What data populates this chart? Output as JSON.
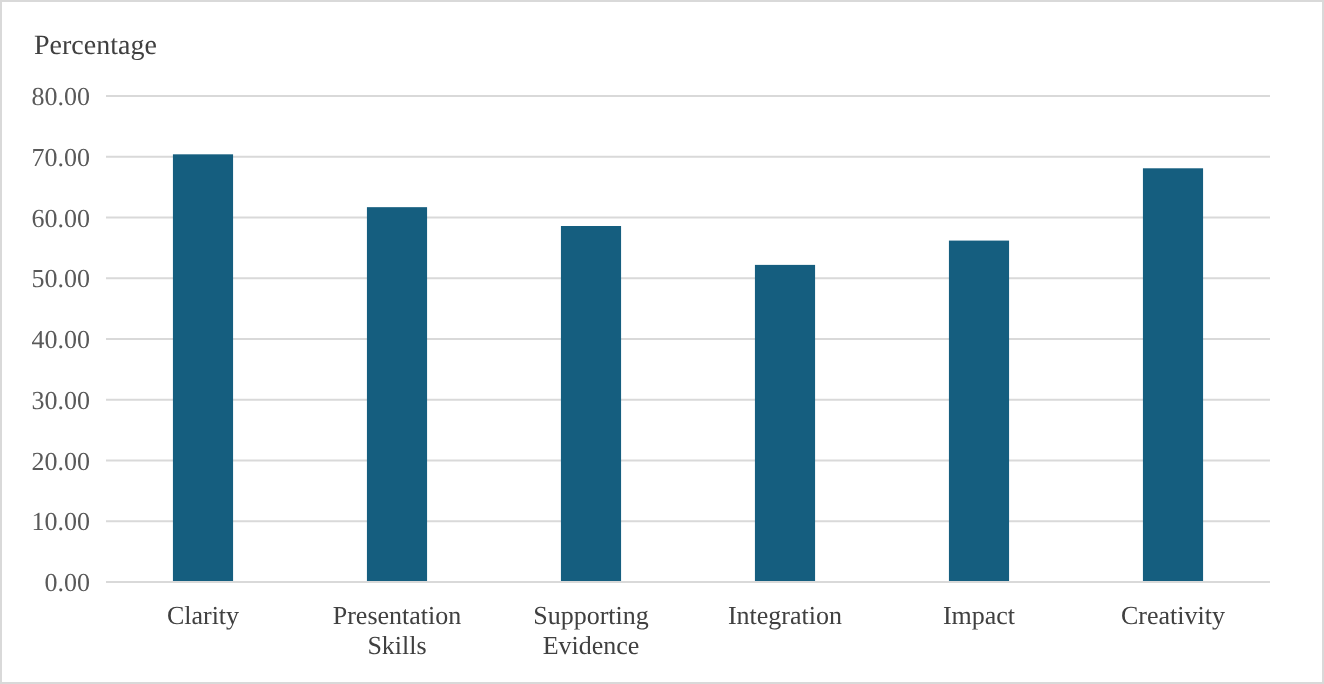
{
  "chart_data": {
    "type": "bar",
    "ylabel": "Percentage",
    "categories": [
      "Clarity",
      "Presentation Skills",
      "Supporting Evidence",
      "Integration",
      "Impact",
      "Creativity"
    ],
    "values": [
      70.4,
      61.7,
      58.6,
      52.2,
      56.2,
      68.1
    ],
    "color": "#155e7f",
    "ylim": [
      0,
      80
    ],
    "yticks": [
      {
        "value": 0,
        "label": "0.00"
      },
      {
        "value": 10,
        "label": "10.00"
      },
      {
        "value": 20,
        "label": "20.00"
      },
      {
        "value": 30,
        "label": "30.00"
      },
      {
        "value": 40,
        "label": "40.00"
      },
      {
        "value": 50,
        "label": "50.00"
      },
      {
        "value": 60,
        "label": "60.00"
      },
      {
        "value": 70,
        "label": "70.00"
      },
      {
        "value": 80,
        "label": "80.00"
      }
    ],
    "grid": "y"
  }
}
